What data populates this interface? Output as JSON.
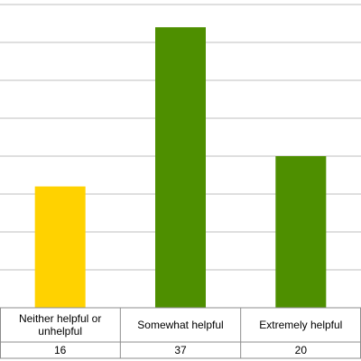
{
  "chart_data": {
    "type": "bar",
    "categories": [
      "Neither helpful or unhelpful",
      "Somewhat helpful",
      "Extremely helpful"
    ],
    "category_lines": [
      [
        "Neither helpful or",
        "unhelpful"
      ],
      [
        "Somewhat helpful"
      ],
      [
        "Extremely helpful"
      ]
    ],
    "values": [
      16,
      37,
      20
    ],
    "table_values": [
      "16",
      "37",
      "20"
    ],
    "colors": [
      "#FFD200",
      "#4E8F00",
      "#4E8F00"
    ],
    "ylim": [
      0,
      40
    ],
    "y_gridline_step": 5,
    "grid": true,
    "legend": "none",
    "title": "",
    "xlabel": "",
    "ylabel": ""
  }
}
